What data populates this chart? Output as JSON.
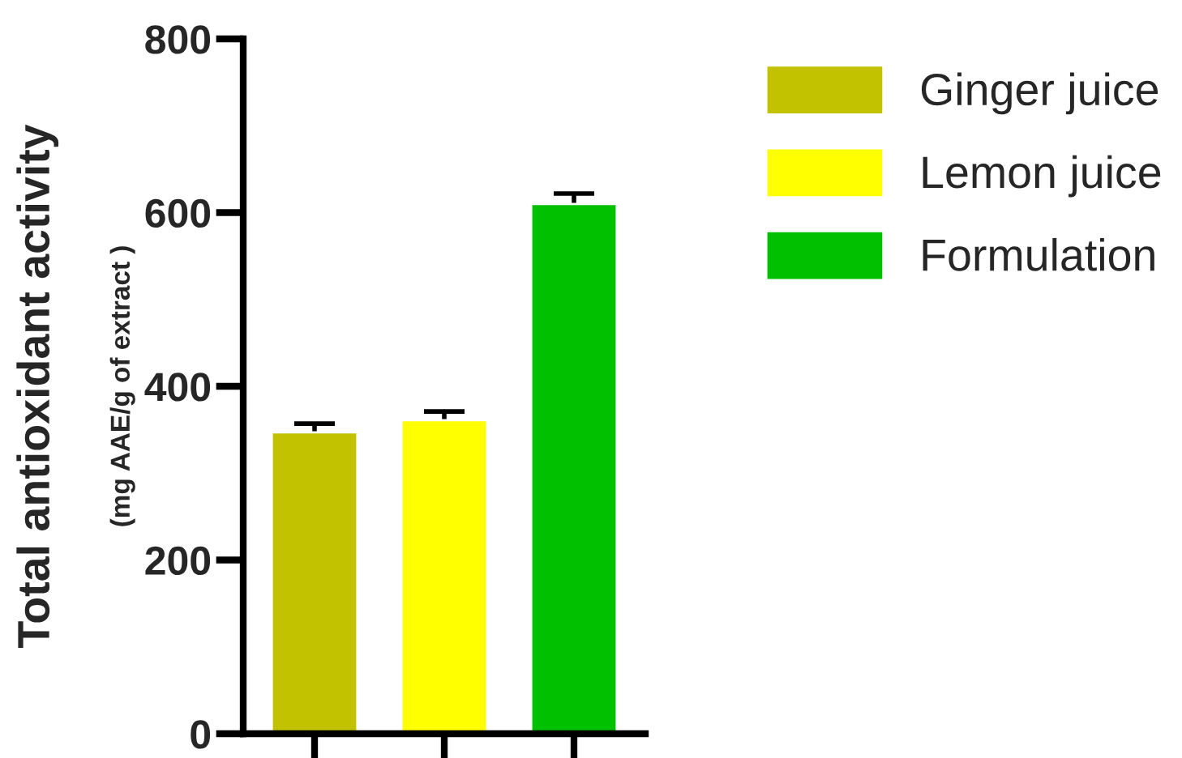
{
  "chart_data": {
    "type": "bar",
    "ylabel": "Total antioxidant activity",
    "annotations": [
      "(mg AAE/g of extract )"
    ],
    "categories": [
      null,
      null,
      null
    ],
    "series": [
      {
        "name": "Ginger juice",
        "color": "#c2c200",
        "values": [
          347,
          null,
          null
        ],
        "errors": [
          10,
          null,
          null
        ]
      },
      {
        "name": "Lemon juice",
        "color": "#ffff00",
        "values": [
          null,
          361,
          null
        ],
        "errors": [
          null,
          10,
          null
        ]
      },
      {
        "name": "Formulation",
        "color": "#00c000",
        "values": [
          null,
          null,
          610
        ],
        "errors": [
          null,
          null,
          12
        ]
      }
    ],
    "ylim": [
      0,
      800
    ],
    "yticks": [
      0,
      200,
      400,
      600,
      800
    ],
    "grid": false,
    "legend": "top right"
  }
}
